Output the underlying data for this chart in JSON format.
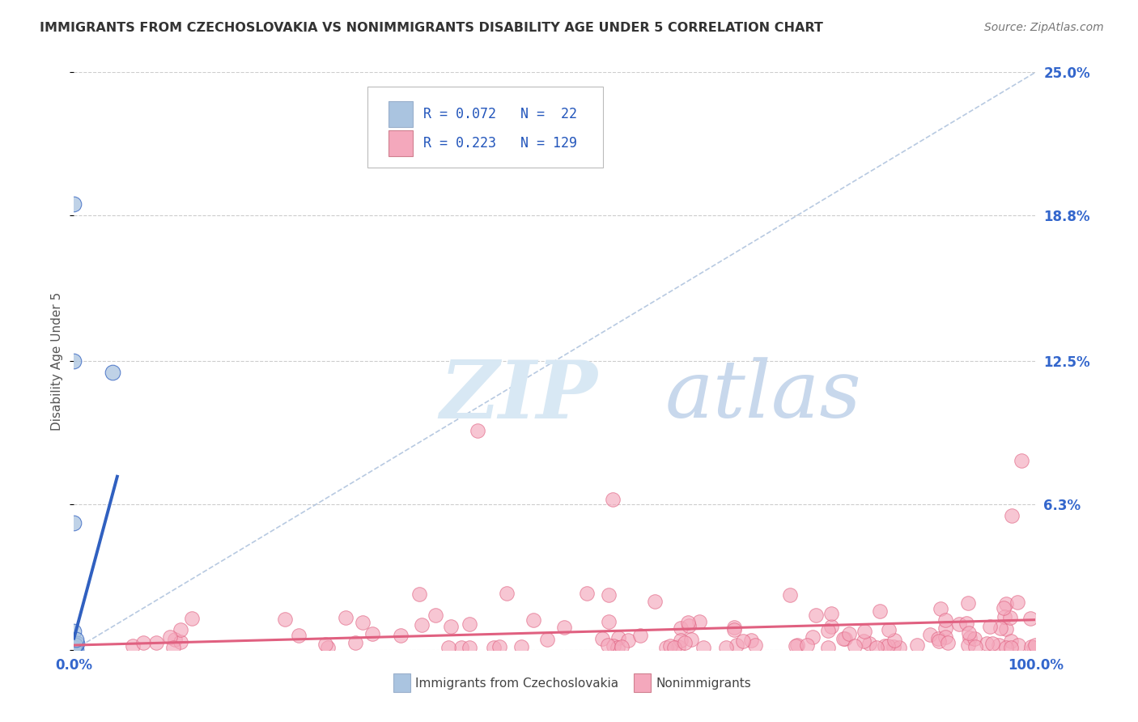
{
  "title": "IMMIGRANTS FROM CZECHOSLOVAKIA VS NONIMMIGRANTS DISABILITY AGE UNDER 5 CORRELATION CHART",
  "source": "Source: ZipAtlas.com",
  "ylabel": "Disability Age Under 5",
  "legend_label1": "Immigrants from Czechoslovakia",
  "legend_label2": "Nonimmigrants",
  "r1": 0.072,
  "n1": 22,
  "r2": 0.223,
  "n2": 129,
  "color1": "#aac4e0",
  "color2": "#f4a8bc",
  "trend_color1": "#3060c0",
  "trend_color2": "#e06080",
  "diag_color": "#b0c4de",
  "watermark_zip_color": "#d8e8f4",
  "watermark_atlas_color": "#c8d8ec",
  "bg_color": "#ffffff",
  "grid_color": "#c8c8c8",
  "xlim": [
    0.0,
    1.0
  ],
  "ylim": [
    0.0,
    0.25
  ],
  "yticks": [
    0.0,
    0.063,
    0.125,
    0.188,
    0.25
  ],
  "ytick_labels": [
    "",
    "6.3%",
    "12.5%",
    "18.8%",
    "25.0%"
  ],
  "xticks": [
    0.0,
    1.0
  ],
  "xtick_labels": [
    "0.0%",
    "100.0%"
  ],
  "blue_x": [
    0.0,
    0.0,
    0.0,
    0.0,
    0.0,
    0.0,
    0.0,
    0.0,
    0.0,
    0.0,
    0.0,
    0.0,
    0.0,
    0.0,
    0.0,
    0.0,
    0.0,
    0.0,
    0.04,
    0.0,
    0.0,
    0.005
  ],
  "blue_y": [
    0.193,
    0.0,
    0.001,
    0.001,
    0.002,
    0.001,
    0.001,
    0.002,
    0.001,
    0.003,
    0.001,
    0.001,
    0.002,
    0.001,
    0.125,
    0.006,
    0.055,
    0.004,
    0.12,
    0.002,
    0.001,
    0.004
  ],
  "blue_trend_x": [
    0.0,
    0.045
  ],
  "blue_trend_y": [
    0.005,
    0.075
  ],
  "pink_trend_x": [
    0.0,
    1.0
  ],
  "pink_trend_y": [
    0.002,
    0.013
  ]
}
